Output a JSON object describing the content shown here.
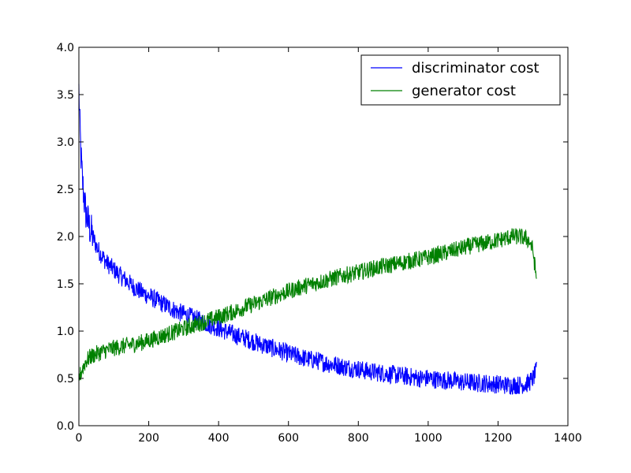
{
  "chart_data": {
    "type": "line",
    "title": "",
    "xlabel": "",
    "ylabel": "",
    "xlim": [
      0,
      1400
    ],
    "ylim": [
      0.0,
      4.0
    ],
    "x_ticks": [
      "0",
      "200",
      "400",
      "600",
      "800",
      "1000",
      "1200",
      "1400"
    ],
    "y_ticks": [
      "0.0",
      "0.5",
      "1.0",
      "1.5",
      "2.0",
      "2.5",
      "3.0",
      "3.5",
      "4.0"
    ],
    "grid": false,
    "legend_position": "top-right",
    "series": [
      {
        "name": "discriminator cost",
        "color": "#0000ff",
        "x": [
          0,
          3,
          6,
          10,
          15,
          20,
          30,
          40,
          50,
          60,
          80,
          100,
          120,
          140,
          160,
          180,
          200,
          220,
          240,
          260,
          280,
          300,
          320,
          340,
          360,
          380,
          400,
          420,
          440,
          460,
          480,
          500,
          520,
          540,
          560,
          580,
          600,
          620,
          640,
          660,
          680,
          700,
          720,
          740,
          760,
          780,
          800,
          820,
          840,
          860,
          880,
          900,
          920,
          940,
          960,
          980,
          1000,
          1020,
          1040,
          1060,
          1080,
          1100,
          1120,
          1140,
          1160,
          1180,
          1200,
          1220,
          1240,
          1260,
          1280,
          1290,
          1300,
          1310
        ],
        "y": [
          3.55,
          3.15,
          2.85,
          2.6,
          2.4,
          2.25,
          2.1,
          2.0,
          1.9,
          1.83,
          1.72,
          1.65,
          1.58,
          1.52,
          1.46,
          1.41,
          1.37,
          1.33,
          1.29,
          1.25,
          1.21,
          1.18,
          1.15,
          1.12,
          1.09,
          1.06,
          1.03,
          1.0,
          0.97,
          0.94,
          0.92,
          0.89,
          0.86,
          0.84,
          0.81,
          0.79,
          0.76,
          0.74,
          0.72,
          0.7,
          0.69,
          0.67,
          0.65,
          0.64,
          0.62,
          0.61,
          0.6,
          0.58,
          0.57,
          0.56,
          0.55,
          0.54,
          0.53,
          0.52,
          0.51,
          0.5,
          0.5,
          0.49,
          0.48,
          0.48,
          0.47,
          0.46,
          0.46,
          0.45,
          0.45,
          0.44,
          0.44,
          0.43,
          0.43,
          0.43,
          0.44,
          0.46,
          0.5,
          0.58
        ]
      },
      {
        "name": "generator cost",
        "color": "#008000",
        "x": [
          0,
          5,
          10,
          20,
          30,
          50,
          80,
          100,
          140,
          180,
          200,
          240,
          280,
          320,
          360,
          400,
          440,
          480,
          520,
          560,
          600,
          640,
          680,
          720,
          760,
          800,
          840,
          880,
          920,
          960,
          1000,
          1040,
          1080,
          1120,
          1160,
          1200,
          1240,
          1260,
          1280,
          1290,
          1300,
          1305,
          1310
        ],
        "y": [
          0.5,
          0.55,
          0.6,
          0.68,
          0.72,
          0.76,
          0.8,
          0.82,
          0.85,
          0.88,
          0.9,
          0.95,
          1.0,
          1.05,
          1.1,
          1.15,
          1.2,
          1.26,
          1.31,
          1.37,
          1.42,
          1.47,
          1.51,
          1.55,
          1.59,
          1.62,
          1.66,
          1.69,
          1.72,
          1.75,
          1.78,
          1.82,
          1.86,
          1.9,
          1.93,
          1.96,
          2.0,
          2.0,
          1.98,
          1.95,
          1.85,
          1.7,
          1.55
        ]
      }
    ]
  }
}
